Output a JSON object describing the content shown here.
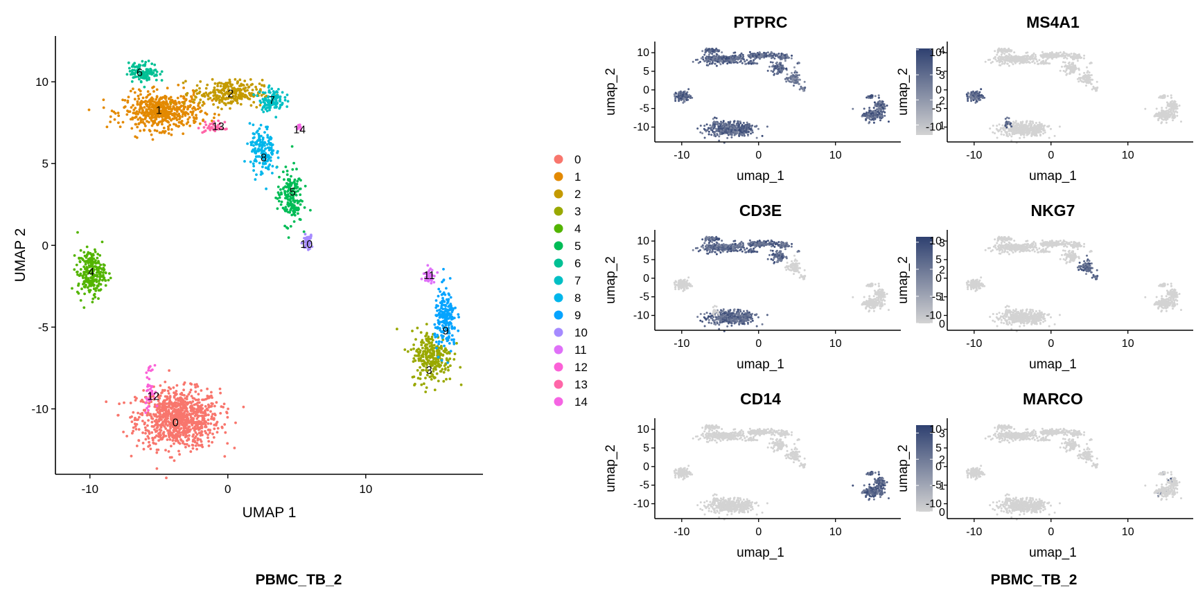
{
  "colors": {
    "axis": "#000000",
    "gradient_low": "#d3d3d3",
    "gradient_high": "#2e4070"
  },
  "cluster_palette": [
    "#F8766D",
    "#E38900",
    "#C49A00",
    "#99A800",
    "#53B400",
    "#00BC56",
    "#00C094",
    "#00BFC4",
    "#00B6EB",
    "#06A4FF",
    "#A58AFF",
    "#DF70F8",
    "#FB61D7",
    "#FF66A8",
    "#F564E3"
  ],
  "chart_data": [
    {
      "id": "umap_clusters",
      "type": "scatter",
      "title": "",
      "caption": "PBMC_TB_2",
      "xlabel": "UMAP 1",
      "ylabel": "UMAP 2",
      "xlim": [
        -12.5,
        18.5
      ],
      "ylim": [
        -14,
        12.8
      ],
      "xticks": [
        -10,
        0,
        10
      ],
      "yticks": [
        -10,
        -5,
        0,
        5,
        10
      ],
      "grid": false,
      "legend_position": "right",
      "legend": [
        "0",
        "1",
        "2",
        "3",
        "4",
        "5",
        "6",
        "7",
        "8",
        "9",
        "10",
        "11",
        "12",
        "13",
        "14"
      ],
      "clusters": [
        {
          "name": "0",
          "label_at": [
            -3.8,
            -10.8
          ]
        },
        {
          "name": "1",
          "label_at": [
            -5.0,
            8.3
          ]
        },
        {
          "name": "2",
          "label_at": [
            0.2,
            9.3
          ]
        },
        {
          "name": "3",
          "label_at": [
            14.6,
            -7.6
          ]
        },
        {
          "name": "4",
          "label_at": [
            -9.9,
            -1.6
          ]
        },
        {
          "name": "5",
          "label_at": [
            4.7,
            3.3
          ]
        },
        {
          "name": "6",
          "label_at": [
            -6.4,
            10.6
          ]
        },
        {
          "name": "7",
          "label_at": [
            3.2,
            8.9
          ]
        },
        {
          "name": "8",
          "label_at": [
            2.6,
            5.4
          ]
        },
        {
          "name": "9",
          "label_at": [
            15.8,
            -5.2
          ]
        },
        {
          "name": "10",
          "label_at": [
            5.7,
            0.1
          ]
        },
        {
          "name": "11",
          "label_at": [
            14.6,
            -1.8
          ]
        },
        {
          "name": "12",
          "label_at": [
            -5.4,
            -9.2
          ]
        },
        {
          "name": "13",
          "label_at": [
            -0.7,
            7.3
          ]
        },
        {
          "name": "14",
          "label_at": [
            5.2,
            7.1
          ]
        }
      ]
    },
    {
      "id": "feature_plots",
      "type": "scatter",
      "caption": "PBMC_TB_2",
      "xlabel": "umap_1",
      "ylabel": "umap_2",
      "xlim": [
        -13.5,
        18.5
      ],
      "ylim": [
        -14,
        13
      ],
      "xticks": [
        -10,
        0,
        10
      ],
      "yticks": [
        -10,
        -5,
        0,
        5,
        10
      ],
      "panels": [
        {
          "gene": "PTPRC",
          "legend_ticks": [
            "1",
            "2",
            "3",
            "4"
          ],
          "tick_values": [
            1,
            2,
            3,
            4
          ],
          "min": 0.6,
          "max": 4.05,
          "expressed_in": [
            "tcell",
            "myeloid",
            "bcell",
            "cluster4"
          ]
        },
        {
          "gene": "MS4A1",
          "legend_ticks": [
            "0",
            "1",
            "2",
            "3"
          ],
          "tick_values": [
            0,
            1,
            2,
            3
          ],
          "min": 0,
          "max": 3.8,
          "expressed_in": [
            "bcell",
            "cluster4"
          ]
        },
        {
          "gene": "CD3E",
          "legend_ticks": [
            "0",
            "1",
            "2",
            "3"
          ],
          "tick_values": [
            0,
            1,
            2,
            3
          ],
          "min": 0,
          "max": 3.2,
          "expressed_in": [
            "tcell"
          ]
        },
        {
          "gene": "NKG7",
          "legend_ticks": [
            "0",
            "1",
            "2",
            "3",
            "4"
          ],
          "tick_values": [
            0,
            1,
            2,
            3,
            4
          ],
          "min": 0,
          "max": 4.9,
          "expressed_in": [
            "nk"
          ]
        },
        {
          "gene": "CD14",
          "legend_ticks": [
            "0",
            "1",
            "2",
            "3"
          ],
          "tick_values": [
            0,
            1,
            2,
            3
          ],
          "min": 0,
          "max": 3.3,
          "expressed_in": [
            "myeloid_low"
          ]
        },
        {
          "gene": "MARCO",
          "legend_ticks": [
            "0.0",
            "0.5",
            "1.0",
            "1.5",
            "2.0"
          ],
          "tick_values": [
            0,
            0.5,
            1,
            1.5,
            2
          ],
          "min": 0,
          "max": 2.2,
          "expressed_in": [
            "sparse"
          ]
        }
      ]
    }
  ]
}
